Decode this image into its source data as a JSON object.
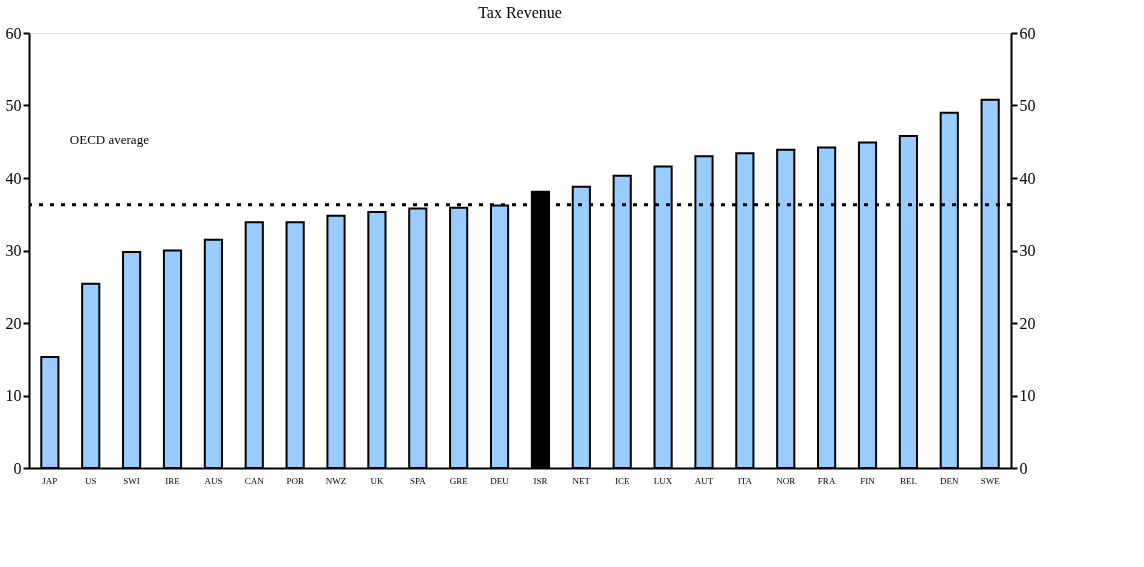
{
  "chart_data": {
    "type": "bar",
    "title": "Tax Revenue",
    "categories": [
      "JAP",
      "US",
      "SWI",
      "IRE",
      "AUS",
      "CAN",
      "POR",
      "NWZ",
      "UK",
      "SPA",
      "GRE",
      "DEU",
      "ISR",
      "NET",
      "ICE",
      "LUX",
      "AUT",
      "ITA",
      "NOR",
      "FRA",
      "FIN",
      "BEL",
      "DEN",
      "SWE"
    ],
    "values": [
      15.3,
      25.4,
      29.8,
      30.0,
      31.5,
      33.9,
      33.9,
      34.8,
      35.3,
      35.8,
      35.9,
      36.2,
      38.1,
      38.8,
      40.3,
      41.6,
      43.0,
      43.4,
      43.9,
      44.2,
      44.9,
      45.8,
      49.0,
      50.8
    ],
    "colors": [
      "#99ccff",
      "#99ccff",
      "#99ccff",
      "#99ccff",
      "#99ccff",
      "#99ccff",
      "#99ccff",
      "#99ccff",
      "#99ccff",
      "#99ccff",
      "#99ccff",
      "#99ccff",
      "#000000",
      "#99ccff",
      "#99ccff",
      "#99ccff",
      "#99ccff",
      "#99ccff",
      "#99ccff",
      "#99ccff",
      "#99ccff",
      "#99ccff",
      "#99ccff",
      "#99ccff"
    ],
    "ylim": [
      0,
      60
    ],
    "yticks": [
      0,
      10,
      20,
      30,
      40,
      50,
      60
    ],
    "y2lim": [
      0,
      60
    ],
    "y2ticks": [
      0,
      10,
      20,
      30,
      40,
      50,
      60
    ],
    "ref_lines": [
      {
        "axis": "y",
        "value": 36.3,
        "label": "OECD average",
        "color": "#000000",
        "line_style": "dotted"
      }
    ],
    "grid": false
  }
}
